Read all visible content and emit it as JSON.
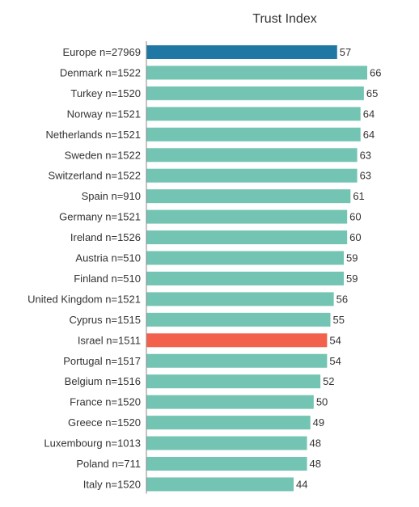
{
  "chart_data": {
    "type": "bar",
    "orientation": "horizontal",
    "title": "Trust Index",
    "xlabel": "",
    "ylabel": "",
    "xlim": [
      0,
      66
    ],
    "grid": false,
    "legend": "none",
    "categories": [
      "Europe n=27969",
      "Denmark n=1522",
      "Turkey n=1520",
      "Norway n=1521",
      "Netherlands n=1521",
      "Sweden n=1522",
      "Switzerland n=1522",
      "Spain n=910",
      "Germany n=1521",
      "Ireland n=1526",
      "Austria n=510",
      "Finland n=510",
      "United Kingdom n=1521",
      "Cyprus n=1515",
      "Israel n=1511",
      "Portugal n=1517",
      "Belgium n=1516",
      "France n=1520",
      "Greece n=1520",
      "Luxembourg n=1013",
      "Poland n=711",
      "Italy n=1520"
    ],
    "values": [
      57,
      66,
      65,
      64,
      64,
      63,
      63,
      61,
      60,
      60,
      59,
      59,
      56,
      55,
      54,
      54,
      52,
      50,
      49,
      48,
      48,
      44
    ],
    "colors": {
      "default": "#74c4b3",
      "Europe n=27969": "#1f78a4",
      "Israel n=1511": "#f2614c"
    },
    "axis_color": "#888888"
  }
}
